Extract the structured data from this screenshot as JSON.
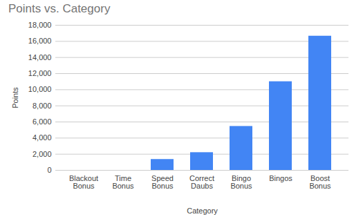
{
  "chart_data": {
    "type": "bar",
    "title": "Points vs. Category",
    "x_label": "Category",
    "y_label": "Points",
    "categories": [
      "Blackout Bonus",
      "Time Bonus",
      "Speed Bonus",
      "Correct Daubs",
      "Bingo Bonus",
      "Bingos",
      "Boost Bonus"
    ],
    "values": [
      0,
      0,
      1350,
      2200,
      5450,
      11000,
      16650
    ],
    "color": "#4285f4",
    "ylim": [
      0,
      18000
    ],
    "yticks": [
      0,
      {
        "value": 2000,
        "label": "2,000"
      },
      {
        "value": 4000,
        "label": "4,000"
      },
      {
        "value": 6000,
        "label": "6,000"
      },
      {
        "value": 8000,
        "label": "8,000"
      },
      {
        "value": 10000,
        "label": "10,000"
      },
      {
        "value": 12000,
        "label": "12,000"
      },
      {
        "value": 14000,
        "label": "14,000"
      },
      {
        "value": 16000,
        "label": "16,000"
      },
      {
        "value": 18000,
        "label": "18,000"
      }
    ],
    "grid": true
  }
}
